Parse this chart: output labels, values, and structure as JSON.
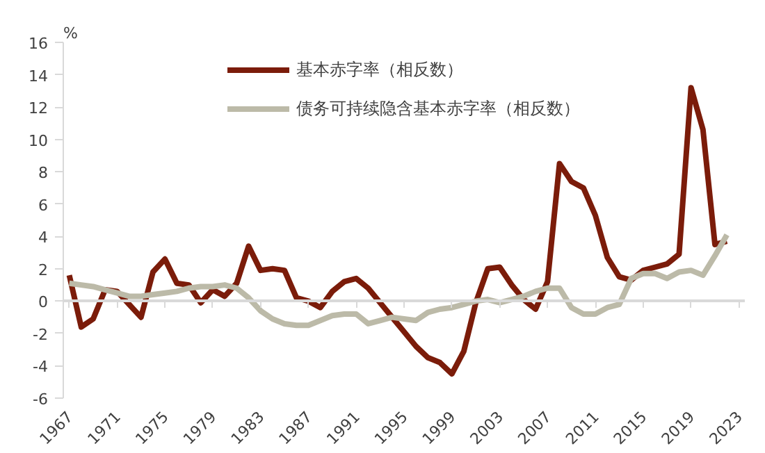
{
  "chart_data": {
    "type": "line",
    "ylabel": "%",
    "x": [
      1967,
      1968,
      1969,
      1970,
      1971,
      1972,
      1973,
      1974,
      1975,
      1976,
      1977,
      1978,
      1979,
      1980,
      1981,
      1982,
      1983,
      1984,
      1985,
      1986,
      1987,
      1988,
      1989,
      1990,
      1991,
      1992,
      1993,
      1994,
      1995,
      1996,
      1997,
      1998,
      1999,
      2000,
      2001,
      2002,
      2003,
      2004,
      2005,
      2006,
      2007,
      2008,
      2009,
      2010,
      2011,
      2012,
      2013,
      2014,
      2015,
      2016,
      2017,
      2018,
      2019,
      2020,
      2021,
      2022
    ],
    "series": [
      {
        "name": "基本赤字率（相反数）",
        "color": "#7b1c0a",
        "values": [
          1.6,
          -1.6,
          -1.1,
          0.7,
          0.6,
          -0.2,
          -1.0,
          1.8,
          2.6,
          1.1,
          1.0,
          -0.1,
          0.7,
          0.3,
          1.1,
          3.4,
          1.9,
          2.0,
          1.9,
          0.2,
          0.0,
          -0.4,
          0.6,
          1.2,
          1.4,
          0.8,
          -0.1,
          -1.0,
          -1.9,
          -2.8,
          -3.5,
          -3.8,
          -4.5,
          -3.1,
          -0.1,
          2.0,
          2.1,
          1.0,
          0.1,
          -0.5,
          1.2,
          8.5,
          7.4,
          7.0,
          5.3,
          2.7,
          1.5,
          1.3,
          1.9,
          2.1,
          2.3,
          2.9,
          13.2,
          10.6,
          3.5,
          3.7
        ]
      },
      {
        "name": "债务可持续隐含基本赤字率（相反数）",
        "color": "#bcbaa8",
        "values": [
          1.1,
          1.0,
          0.9,
          0.7,
          0.5,
          0.3,
          0.3,
          0.4,
          0.5,
          0.6,
          0.8,
          0.9,
          0.9,
          1.0,
          0.8,
          0.2,
          -0.6,
          -1.1,
          -1.4,
          -1.5,
          -1.5,
          -1.2,
          -0.9,
          -0.8,
          -0.8,
          -1.4,
          -1.2,
          -1.0,
          -1.1,
          -1.2,
          -0.7,
          -0.5,
          -0.4,
          -0.2,
          0.0,
          0.1,
          -0.1,
          0.1,
          0.3,
          0.6,
          0.8,
          0.8,
          -0.4,
          -0.8,
          -0.8,
          -0.4,
          -0.2,
          1.4,
          1.7,
          1.7,
          1.4,
          1.8,
          1.9,
          1.6,
          2.8,
          4.1
        ]
      }
    ],
    "xlim": [
      1966.5,
      2023.5
    ],
    "xticks": [
      1967,
      1971,
      1975,
      1979,
      1983,
      1987,
      1991,
      1995,
      1999,
      2003,
      2007,
      2011,
      2015,
      2019,
      2023
    ],
    "ylim": [
      -6,
      16
    ],
    "yticks": [
      -6,
      -4,
      -2,
      0,
      2,
      4,
      6,
      8,
      10,
      12,
      14,
      16
    ],
    "legend": "top",
    "line_style": "solid",
    "marker": "none"
  }
}
